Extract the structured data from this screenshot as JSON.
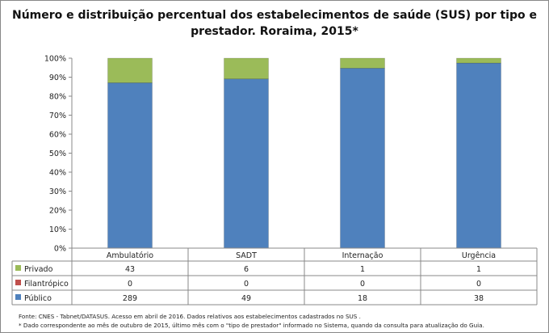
{
  "chart_data": {
    "type": "bar",
    "stacked": "percent",
    "title": "Número e distribuição percentual dos estabelecimentos de saúde (SUS) por tipo e prestador. Roraima, 2015*",
    "categories": [
      "Ambulatório",
      "SADT",
      "Internação",
      "Urgência"
    ],
    "series": [
      {
        "name": "Privado",
        "values": [
          43,
          6,
          1,
          1
        ],
        "color": "#9bbb59"
      },
      {
        "name": "Filantrópico",
        "values": [
          0,
          0,
          0,
          0
        ],
        "color": "#c0504d"
      },
      {
        "name": "Público",
        "values": [
          289,
          49,
          18,
          38
        ],
        "color": "#4f81bd"
      }
    ],
    "yticks": [
      "0%",
      "10%",
      "20%",
      "30%",
      "40%",
      "50%",
      "60%",
      "70%",
      "80%",
      "90%",
      "100%"
    ],
    "ylim": [
      0,
      100
    ],
    "grid": false,
    "legend": "data-table"
  },
  "notes": {
    "source": "Fonte: CNES - Tabnet/DATASUS. Acesso em abril de 2016.  Dados relativos aos estabelecimentos cadastrados no SUS .",
    "footnote": "* Dado correspondente ao mês de  outubro de 2015, último mês com o \"tipo de prestador\" informado no Sistema, quando da consulta para atualização do Guia."
  }
}
